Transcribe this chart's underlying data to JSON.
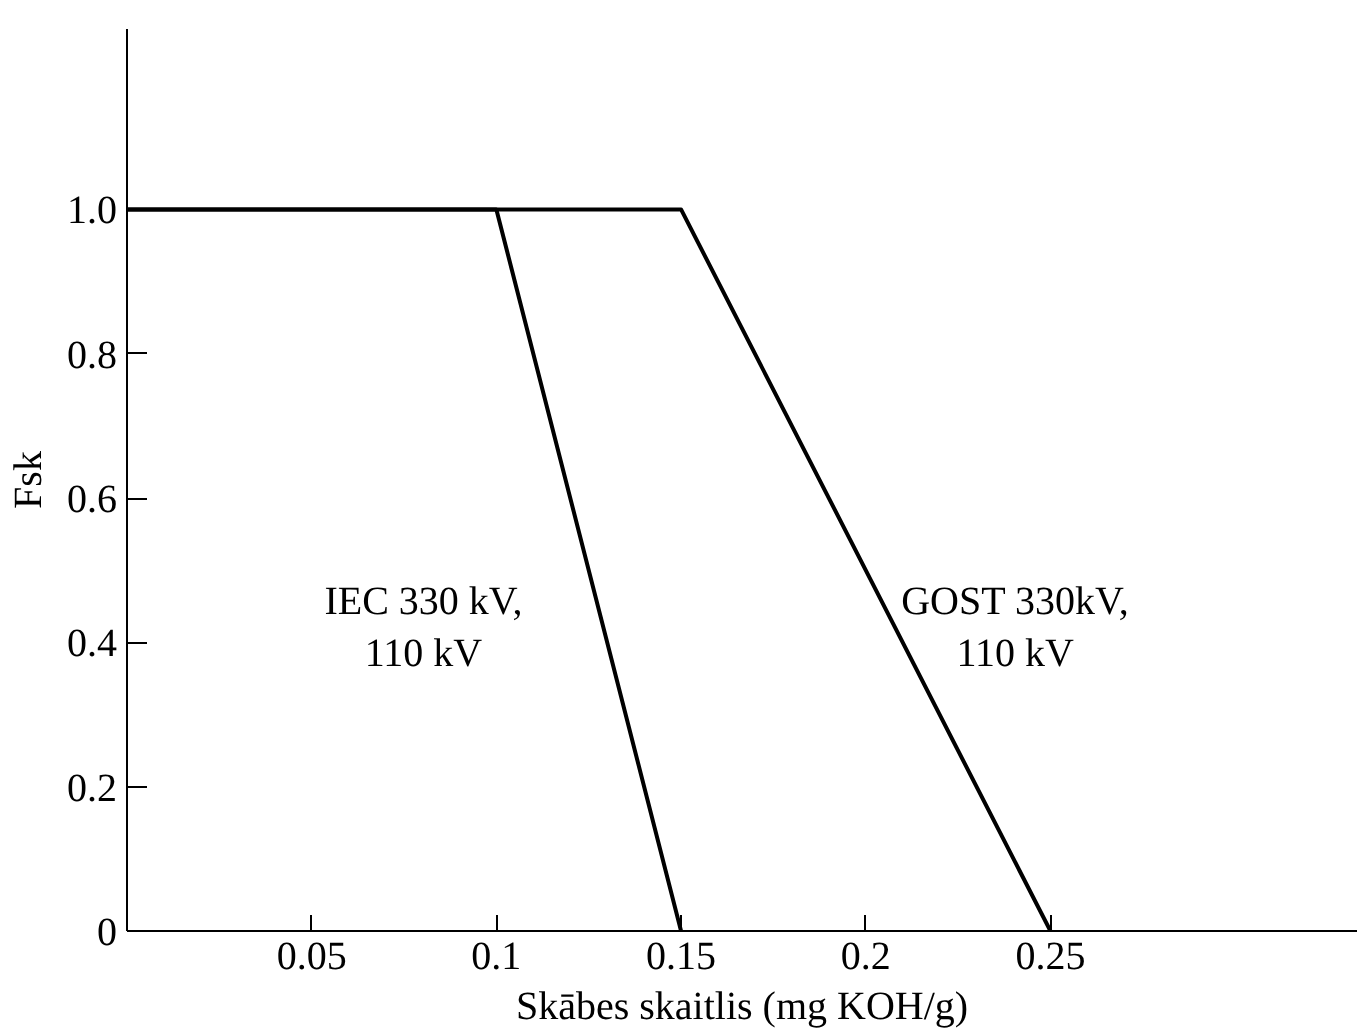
{
  "chart_data": {
    "type": "line",
    "xlabel": "Skābes skaitlis (mg KOH/g)",
    "ylabel": "Fsk",
    "series": [
      {
        "name": "IEC 330 kV,\n110 kV",
        "color": "#000000",
        "x": [
          0,
          0.1,
          0.15
        ],
        "values": [
          1,
          1,
          0
        ]
      },
      {
        "name": "GOST 330kV,\n110 kV",
        "color": "#000000",
        "x": [
          0,
          0.15,
          0.25
        ],
        "values": [
          1,
          1,
          0
        ]
      }
    ],
    "xlim": [
      0,
      0.333
    ],
    "ylim": [
      0,
      1.25
    ],
    "xticks": [
      0.05,
      0.1,
      0.15,
      0.2,
      0.25
    ],
    "yticks": [
      0,
      {
        "value": 0.2,
        "label": "0.2"
      },
      {
        "value": 0.4,
        "label": "0.4"
      },
      {
        "value": 0.6,
        "label": "0.6"
      },
      {
        "value": 0.8,
        "label": "0.8"
      },
      {
        "value": 1.0,
        "label": "1.0"
      }
    ],
    "grid": false,
    "marker": "none",
    "line_style": "solid"
  }
}
